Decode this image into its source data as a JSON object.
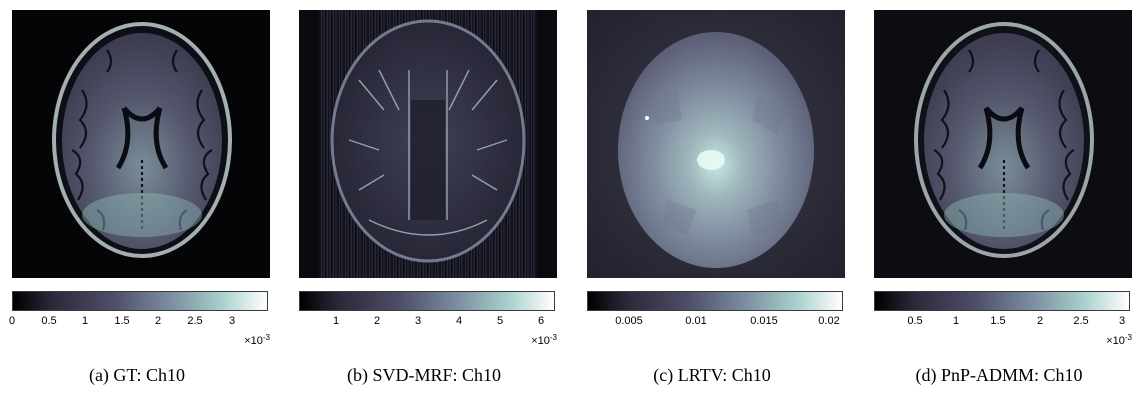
{
  "colormap": [
    "#000000",
    "#2a2838",
    "#4f4f6a",
    "#7c8ea0",
    "#a7d0cb",
    "#ffffff"
  ],
  "panels": [
    {
      "caption": "(a) GT: Ch10",
      "image": "brain-axial-slice",
      "colorbar": {
        "ticks": [
          "0",
          "0.5",
          "1",
          "1.5",
          "2",
          "2.5",
          "3"
        ],
        "exponent_base": "×10",
        "exponent": "-3"
      }
    },
    {
      "caption": "(b) SVD-MRF: Ch10",
      "image": "brain-axial-slice-aliased",
      "colorbar": {
        "ticks": [
          "1",
          "2",
          "3",
          "4",
          "5",
          "6"
        ],
        "exponent_base": "×10",
        "exponent": "-3"
      }
    },
    {
      "caption": "(c) LRTV: Ch10",
      "image": "brain-axial-slice-oversmoothed",
      "colorbar": {
        "ticks": [
          "0.005",
          "0.01",
          "0.015",
          "0.02"
        ],
        "exponent_base": "",
        "exponent": ""
      }
    },
    {
      "caption": "(d) PnP-ADMM: Ch10",
      "image": "brain-axial-slice",
      "colorbar": {
        "ticks": [
          "0.5",
          "1",
          "1.5",
          "2",
          "2.5",
          "3"
        ],
        "exponent_base": "×10",
        "exponent": "-3"
      }
    }
  ]
}
